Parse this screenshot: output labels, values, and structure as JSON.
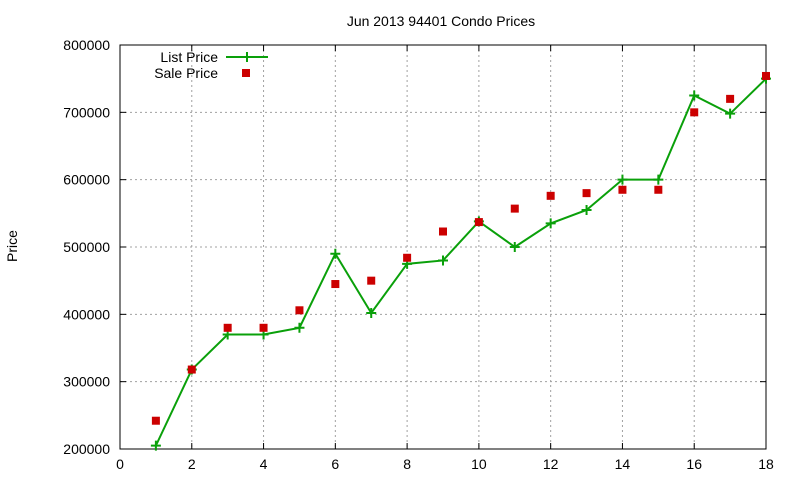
{
  "chart_data": {
    "type": "line",
    "title": "Jun 2013 94401 Condo Prices",
    "xlabel": "",
    "ylabel": "Price",
    "xlim": [
      0,
      18
    ],
    "ylim": [
      200000,
      800000
    ],
    "xticks": [
      0,
      2,
      4,
      6,
      8,
      10,
      12,
      14,
      16,
      18
    ],
    "yticks": [
      200000,
      300000,
      400000,
      500000,
      600000,
      700000,
      800000
    ],
    "grid": true,
    "legend_position": "top-left",
    "series": [
      {
        "name": "List Price",
        "style": "line-with-plus-markers",
        "color": "#0aa00a",
        "x": [
          1,
          2,
          3,
          4,
          5,
          6,
          7,
          8,
          9,
          10,
          11,
          12,
          13,
          14,
          15,
          16,
          17,
          18
        ],
        "values": [
          205000,
          318000,
          370000,
          370000,
          380000,
          490000,
          402000,
          475000,
          480000,
          538000,
          500000,
          535000,
          555000,
          600000,
          600000,
          725000,
          698000,
          750000
        ]
      },
      {
        "name": "Sale Price",
        "style": "square-markers",
        "color": "#cc0000",
        "x": [
          1,
          2,
          3,
          4,
          5,
          6,
          7,
          8,
          9,
          10,
          11,
          12,
          13,
          14,
          15,
          16,
          17,
          18
        ],
        "values": [
          242000,
          318000,
          380000,
          380000,
          406000,
          445000,
          450000,
          484000,
          523000,
          537000,
          557000,
          576000,
          580000,
          585000,
          585000,
          700000,
          720000,
          754000
        ]
      }
    ]
  }
}
